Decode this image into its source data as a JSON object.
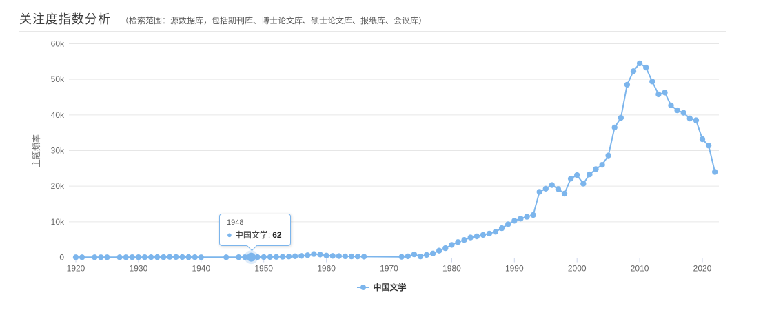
{
  "header": {
    "title": "关注度指数分析",
    "subtitle": "（检索范围：源数据库，包括期刊库、博士论文库、硕士论文库、报纸库、会议库）"
  },
  "tooltip": {
    "year": "1948",
    "series_label": "中国文学:",
    "value": "62"
  },
  "legend": {
    "label": "中国文学"
  },
  "colors": {
    "series": "#7cb5ec",
    "grid": "#e6e6e6",
    "axis_line": "#ccd6eb",
    "tick_text": "#666666",
    "legend_text": "#333333"
  },
  "chart_data": {
    "type": "line",
    "title": "关注度指数分析",
    "xlabel": "",
    "ylabel": "主题频率",
    "grid": true,
    "legend_position": "bottom",
    "ylim": [
      0,
      60000
    ],
    "ytick_values": [
      0,
      10000,
      20000,
      30000,
      40000,
      50000,
      60000
    ],
    "ytick_labels": [
      "0",
      "10k",
      "20k",
      "30k",
      "40k",
      "50k",
      "60k"
    ],
    "xticks": [
      1920,
      1930,
      1940,
      1950,
      1960,
      1970,
      1980,
      1990,
      2000,
      2010,
      2020
    ],
    "x_start": 1920,
    "x_end": 2022,
    "highlight": {
      "year": 1948,
      "value": 62
    },
    "series": [
      {
        "name": "中国文学",
        "color": "#7cb5ec",
        "years": [
          1920,
          1921,
          1922,
          1923,
          1924,
          1925,
          1926,
          1927,
          1928,
          1929,
          1930,
          1931,
          1932,
          1933,
          1934,
          1935,
          1936,
          1937,
          1938,
          1939,
          1940,
          1941,
          1942,
          1943,
          1944,
          1945,
          1946,
          1947,
          1948,
          1949,
          1950,
          1951,
          1952,
          1953,
          1954,
          1955,
          1956,
          1957,
          1958,
          1959,
          1960,
          1961,
          1962,
          1963,
          1964,
          1965,
          1966,
          1967,
          1968,
          1969,
          1970,
          1971,
          1972,
          1973,
          1974,
          1975,
          1976,
          1977,
          1978,
          1979,
          1980,
          1981,
          1982,
          1983,
          1984,
          1985,
          1986,
          1987,
          1988,
          1989,
          1990,
          1991,
          1992,
          1993,
          1994,
          1995,
          1996,
          1997,
          1998,
          1999,
          2000,
          2001,
          2002,
          2003,
          2004,
          2005,
          2006,
          2007,
          2008,
          2009,
          2010,
          2011,
          2012,
          2013,
          2014,
          2015,
          2016,
          2017,
          2018,
          2019,
          2020,
          2021,
          2022
        ],
        "values": [
          35,
          45,
          null,
          30,
          40,
          45,
          null,
          40,
          45,
          50,
          55,
          60,
          65,
          75,
          85,
          140,
          110,
          95,
          70,
          55,
          45,
          null,
          null,
          null,
          40,
          null,
          50,
          55,
          62,
          70,
          90,
          110,
          140,
          170,
          230,
          330,
          420,
          620,
          950,
          820,
          520,
          420,
          360,
          310,
          280,
          250,
          210,
          null,
          null,
          null,
          null,
          null,
          160,
          300,
          850,
          250,
          700,
          1100,
          1900,
          2600,
          3500,
          4300,
          4900,
          5600,
          5900,
          6300,
          6700,
          7200,
          8200,
          9300,
          10300,
          10900,
          11400,
          11900,
          18400,
          19300,
          20300,
          19200,
          17900,
          22100,
          23100,
          20700,
          23300,
          24800,
          26000,
          28600,
          36500,
          39200,
          48500,
          52300,
          54500,
          53300,
          49400,
          45800,
          46300,
          42700,
          41300,
          40600,
          39000,
          38500,
          33200,
          31400,
          24000
        ]
      }
    ]
  }
}
